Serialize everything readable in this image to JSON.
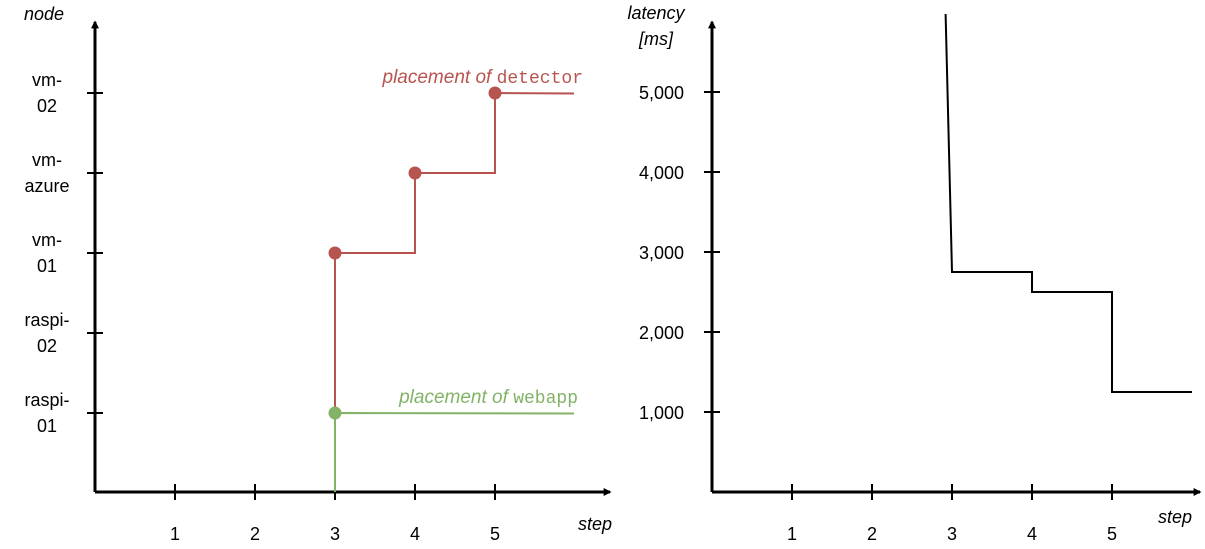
{
  "colors": {
    "axis": "#000000",
    "detector": "#b85450",
    "webapp": "#82b366",
    "latency": "#000000"
  },
  "chart_data": [
    {
      "type": "line",
      "line_shape": "step",
      "xlabel": "step",
      "ylabel": "node",
      "x_ticks": [
        "1",
        "2",
        "3",
        "4",
        "5"
      ],
      "y_categories": [
        "raspi-01",
        "raspi-02",
        "vm-01",
        "vm-azure",
        "vm-02"
      ],
      "y_tick_lines": [
        [
          "raspi-",
          "01"
        ],
        [
          "raspi-",
          "02"
        ],
        [
          "vm-",
          "01"
        ],
        [
          "vm-",
          "azure"
        ],
        [
          "vm-",
          "02"
        ]
      ],
      "series": [
        {
          "name_prefix": "placement of ",
          "name_code": "detector",
          "color": "#b85450",
          "points": [
            {
              "x": 3,
              "y": "vm-01"
            },
            {
              "x": 4,
              "y": "vm-azure"
            },
            {
              "x": 5,
              "y": "vm-02"
            }
          ],
          "starts_at_x": 3,
          "extends_to_x": 6
        },
        {
          "name_prefix": "placement of ",
          "name_code": "webapp",
          "color": "#82b366",
          "points": [
            {
              "x": 3,
              "y": "raspi-01"
            }
          ],
          "starts_at_x": 3,
          "extends_to_x": 6
        }
      ]
    },
    {
      "type": "line",
      "line_shape": "step",
      "xlabel": "step",
      "ylabel": "latency [ms]",
      "ylabel_lines": [
        "latency",
        "[ms]"
      ],
      "x_ticks": [
        "1",
        "2",
        "3",
        "4",
        "5"
      ],
      "y_ticks": [
        "1,000",
        "2,000",
        "3,000",
        "4,000",
        "5,000"
      ],
      "y_tick_values": [
        1000,
        2000,
        3000,
        4000,
        5000
      ],
      "ylim": [
        0,
        6000
      ],
      "series": [
        {
          "color": "#000000",
          "points": [
            {
              "x": 2.92,
              "y": 6000
            },
            {
              "x": 3.0,
              "y": 2750
            },
            {
              "x": 4.0,
              "y": 2750
            },
            {
              "x": 4.0,
              "y": 2500
            },
            {
              "x": 5.0,
              "y": 2500
            },
            {
              "x": 5.0,
              "y": 1250
            },
            {
              "x": 6.0,
              "y": 1250
            }
          ]
        }
      ]
    }
  ]
}
